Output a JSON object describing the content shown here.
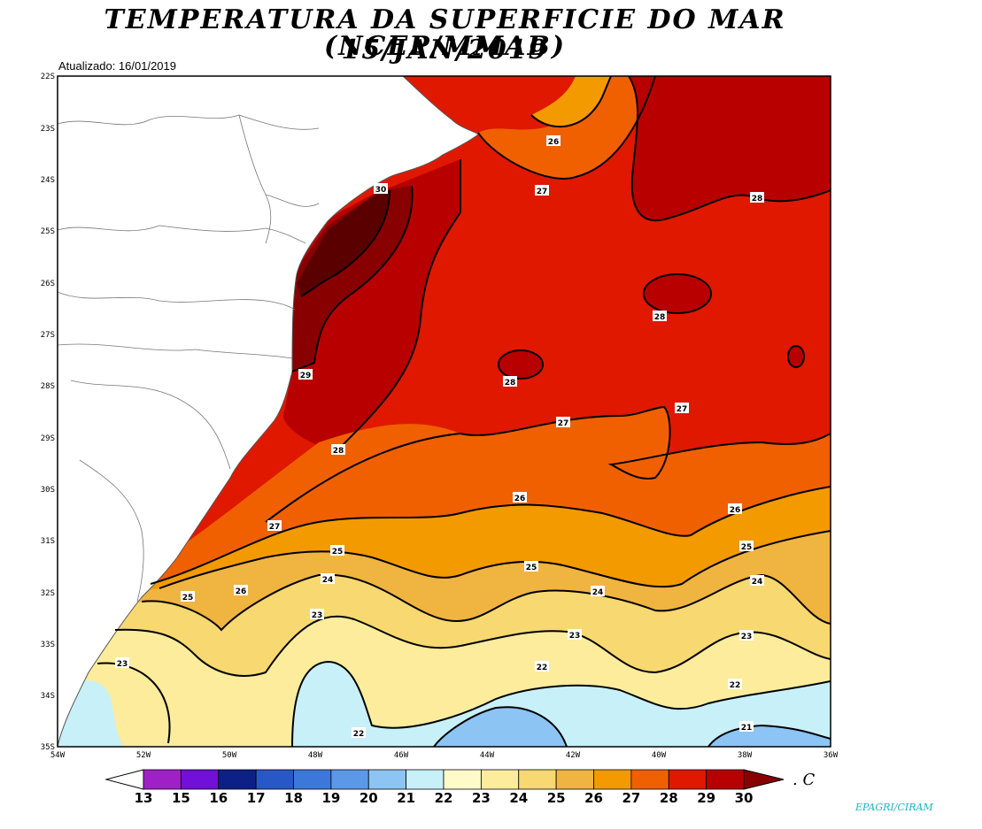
{
  "title_line1": "TEMPERATURA DA SUPERFICIE DO MAR (NCEP/MMAB)",
  "title_line2": "15/JAN/2019",
  "updated": "Atualizado: 16/01/2019",
  "credit": "EPAGRI/CIRAM",
  "map": {
    "lat_labels": [
      "22S",
      "23S",
      "24S",
      "25S",
      "26S",
      "27S",
      "28S",
      "29S",
      "30S",
      "31S",
      "32S",
      "33S",
      "34S",
      "35S"
    ],
    "lon_labels": [
      "54W",
      "52W",
      "50W",
      "48W",
      "46W",
      "44W",
      "42W",
      "40W",
      "38W",
      "36W"
    ],
    "contour_labels": [
      "26",
      "27",
      "28",
      "28",
      "28",
      "29",
      "30",
      "28",
      "27",
      "27",
      "27",
      "26",
      "26",
      "26",
      "25",
      "25",
      "25",
      "25",
      "24",
      "24",
      "24",
      "23",
      "23",
      "23",
      "23",
      "22",
      "22",
      "22",
      "21"
    ]
  },
  "colorbar": {
    "ticks": [
      "13",
      "15",
      "16",
      "17",
      "18",
      "19",
      "20",
      "21",
      "22",
      "23",
      "24",
      "25",
      "26",
      "27",
      "28",
      "29",
      "30"
    ],
    "colors": [
      "#a020c8",
      "#7010d8",
      "#0c2088",
      "#2858c8",
      "#3c78dc",
      "#5c98e8",
      "#8cc4f4",
      "#c8f0f8",
      "#fffaca",
      "#fcec9c",
      "#f8d870",
      "#f0b440",
      "#f29a00",
      "#f06000",
      "#e01800",
      "#b80000",
      "#880000"
    ],
    "unit": ". C"
  }
}
